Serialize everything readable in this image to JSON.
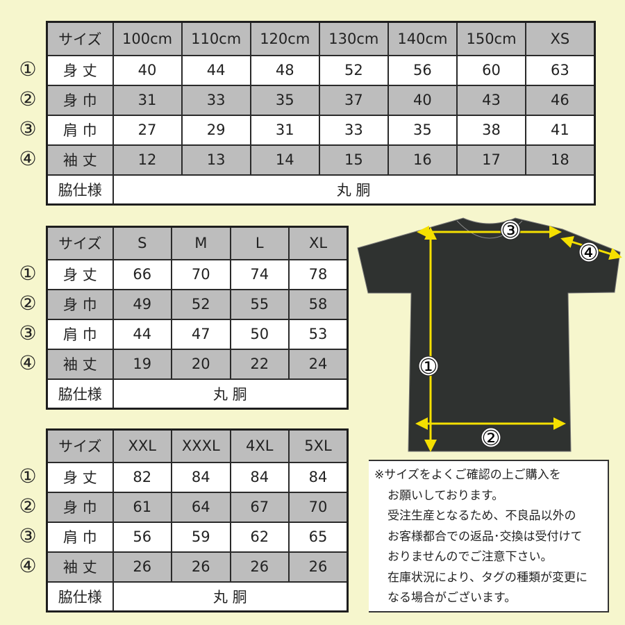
{
  "colors": {
    "background": "#f6f6cd",
    "header_gray": "#bdbdbd",
    "arrow": "#f5e000",
    "shirt": "#2f3230"
  },
  "row_markers": [
    "①",
    "②",
    "③",
    "④"
  ],
  "tables": [
    {
      "header": [
        "サイズ",
        "100cm",
        "110cm",
        "120cm",
        "130cm",
        "140cm",
        "150cm",
        "XS"
      ],
      "rows": [
        {
          "label": "身 丈",
          "values": [
            "40",
            "44",
            "48",
            "52",
            "56",
            "60",
            "63"
          ]
        },
        {
          "label": "身 巾",
          "values": [
            "31",
            "33",
            "35",
            "37",
            "40",
            "43",
            "46"
          ]
        },
        {
          "label": "肩 巾",
          "values": [
            "27",
            "29",
            "31",
            "33",
            "35",
            "38",
            "41"
          ]
        },
        {
          "label": "袖 丈",
          "values": [
            "12",
            "13",
            "14",
            "15",
            "16",
            "17",
            "18"
          ]
        }
      ],
      "side_label": "脇仕様",
      "side_value": "丸 胴"
    },
    {
      "header": [
        "サイズ",
        "S",
        "M",
        "L",
        "XL"
      ],
      "rows": [
        {
          "label": "身 丈",
          "values": [
            "66",
            "70",
            "74",
            "78"
          ]
        },
        {
          "label": "身 巾",
          "values": [
            "49",
            "52",
            "55",
            "58"
          ]
        },
        {
          "label": "肩 巾",
          "values": [
            "44",
            "47",
            "50",
            "53"
          ]
        },
        {
          "label": "袖 丈",
          "values": [
            "19",
            "20",
            "22",
            "24"
          ]
        }
      ],
      "side_label": "脇仕様",
      "side_value": "丸 胴"
    },
    {
      "header": [
        "サイズ",
        "XXL",
        "XXXL",
        "4XL",
        "5XL"
      ],
      "rows": [
        {
          "label": "身 丈",
          "values": [
            "82",
            "84",
            "84",
            "84"
          ]
        },
        {
          "label": "身 巾",
          "values": [
            "61",
            "64",
            "67",
            "70"
          ]
        },
        {
          "label": "肩 巾",
          "values": [
            "56",
            "59",
            "62",
            "65"
          ]
        },
        {
          "label": "袖 丈",
          "values": [
            "26",
            "26",
            "26",
            "26"
          ]
        }
      ],
      "side_label": "脇仕様",
      "side_value": "丸 胴"
    }
  ],
  "diagram": {
    "labels": [
      "①",
      "②",
      "③",
      "④"
    ]
  },
  "note": [
    "※サイズをよくご確認の上ご購入を",
    "お願いしております。",
    "受注生産となるため、不良品以外の",
    "お客様都合での返品･交換は受付けて",
    "おりませんのでご注意下さい。",
    "在庫状況により、タグの種類が変更に",
    "なる場合がございます。"
  ]
}
